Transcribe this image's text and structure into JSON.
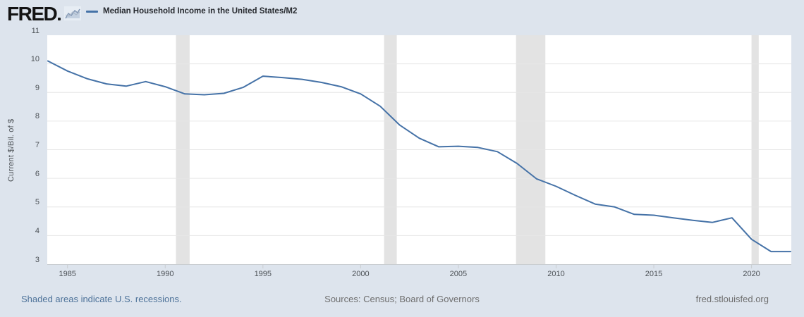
{
  "header": {
    "logo_text": "FRED",
    "legend": {
      "series_label": "Median Household Income in the United States/M2"
    }
  },
  "footer": {
    "recession_note": "Shaded areas indicate U.S. recessions.",
    "sources": "Sources: Census; Board of Governors",
    "site": "fred.stlouisfed.org"
  },
  "colors": {
    "page_background": "#dde4ed",
    "plot_background": "#ffffff",
    "line": "#4572a7",
    "gridline": "#e6e6e6",
    "recession_band": "#e3e3e3",
    "axis_line": "#c9cdd1",
    "axis_text": "#4d5257",
    "footer_link_blue": "#4d7299",
    "footer_gray": "#6e6e6e"
  },
  "chart_data": {
    "type": "line",
    "title": "Median Household Income in the United States/M2",
    "xlabel": "",
    "ylabel": "Current $/Bil. of $",
    "ylim": [
      3,
      11
    ],
    "xlim": [
      1984,
      2022
    ],
    "y_ticks": [
      3,
      4,
      5,
      6,
      7,
      8,
      9,
      10,
      11
    ],
    "x_ticks": [
      1985,
      1990,
      1995,
      2000,
      2005,
      2010,
      2015,
      2020
    ],
    "grid": "horizontal-only",
    "legend_position": "top-left",
    "recession_bands": [
      [
        1990.55,
        1991.25
      ],
      [
        2001.2,
        2001.85
      ],
      [
        2007.95,
        2009.45
      ],
      [
        2020.0,
        2020.37
      ]
    ],
    "x": [
      1984,
      1985,
      1986,
      1987,
      1988,
      1989,
      1990,
      1991,
      1992,
      1993,
      1994,
      1995,
      1996,
      1997,
      1998,
      1999,
      2000,
      2001,
      2002,
      2003,
      2004,
      2005,
      2006,
      2007,
      2008,
      2009,
      2010,
      2011,
      2012,
      2013,
      2014,
      2015,
      2016,
      2017,
      2018,
      2019,
      2020,
      2021,
      2022
    ],
    "values": [
      10.1,
      9.75,
      9.48,
      9.3,
      9.22,
      9.38,
      9.2,
      8.95,
      8.92,
      8.97,
      9.18,
      9.57,
      9.52,
      9.46,
      9.35,
      9.2,
      8.95,
      8.52,
      7.86,
      7.4,
      7.1,
      7.12,
      7.08,
      6.93,
      6.52,
      5.98,
      5.72,
      5.4,
      5.1,
      5.0,
      4.74,
      4.71,
      4.62,
      4.53,
      4.46,
      4.62,
      3.87,
      3.44,
      3.44
    ]
  }
}
